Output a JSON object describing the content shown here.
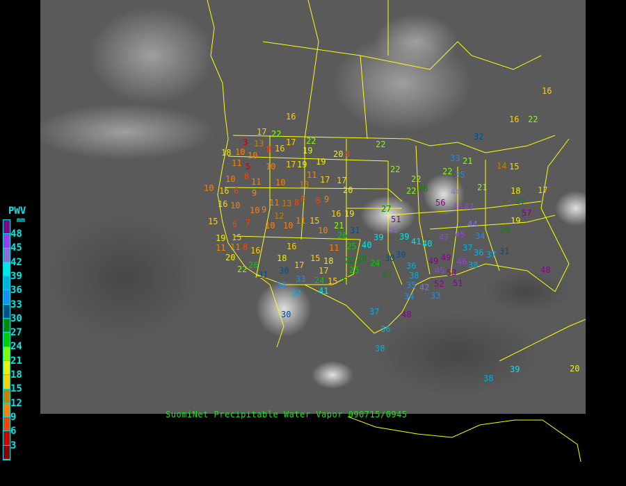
{
  "caption": "SuomiNet Precipitable Water Vapor 090715/0945",
  "legend": {
    "title": "PWV",
    "unit": "mm",
    "ticks": [
      "48",
      "45",
      "42",
      "39",
      "36",
      "33",
      "30",
      "27",
      "24",
      "21",
      "18",
      "15",
      "12",
      "9",
      "6",
      "3"
    ],
    "colors": [
      "#8b008b",
      "#9b3cf0",
      "#8a70d0",
      "#00e8e8",
      "#00b0e0",
      "#1e8cf0",
      "#00508c",
      "#008c00",
      "#00cc00",
      "#80ff00",
      "#f0f000",
      "#ffd000",
      "#c88000",
      "#ff8000",
      "#ff4000",
      "#d00000",
      "#8b0000"
    ]
  },
  "boundary_color": "#ffff00",
  "stations": [
    16,
    17,
    22,
    22,
    17,
    16,
    19,
    20,
    8,
    22,
    3,
    13,
    18,
    10,
    10,
    8,
    11,
    5,
    8,
    11,
    10,
    17,
    19,
    19,
    11,
    22,
    10,
    10,
    13,
    17,
    17,
    10,
    16,
    6,
    9,
    20,
    22,
    28,
    22,
    56,
    44,
    46,
    21,
    18,
    16,
    10,
    10,
    9,
    11,
    13,
    8,
    6,
    8,
    9,
    19,
    16,
    15,
    6,
    7,
    12,
    10,
    10,
    11,
    15,
    10,
    21,
    26,
    31,
    51,
    27,
    43,
    39,
    39,
    16,
    19,
    15,
    11,
    11,
    8,
    16,
    20,
    11,
    25,
    40,
    18,
    15,
    18,
    17,
    17,
    15,
    22,
    26,
    31,
    30,
    33,
    34,
    24,
    27,
    28,
    28,
    25,
    27,
    24,
    30,
    40,
    41,
    47,
    44,
    47,
    45,
    37,
    34,
    36,
    37,
    31,
    29,
    19,
    57,
    48,
    49,
    45,
    51,
    52,
    53,
    33,
    34,
    35,
    38,
    42,
    49,
    46,
    38,
    36,
    30,
    37,
    36,
    38,
    48,
    30,
    37,
    41,
    38,
    39,
    20,
    16,
    16,
    22,
    32,
    33,
    35,
    22,
    21,
    14,
    15,
    17,
    27
  ]
}
